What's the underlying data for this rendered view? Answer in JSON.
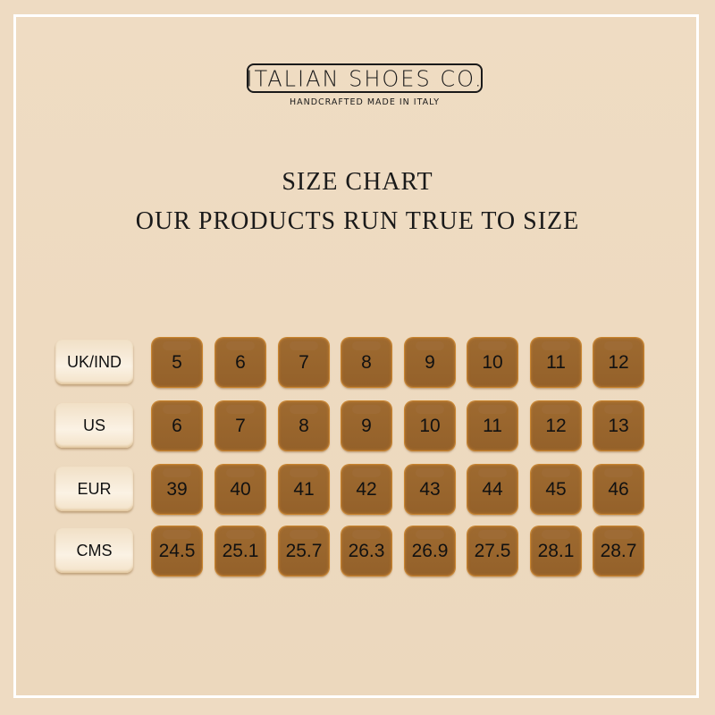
{
  "brand": {
    "name": "ITALIAN SHOES CO.",
    "tagline": "HANDCRAFTED MADE IN ITALY"
  },
  "heading": {
    "title": "SIZE CHART",
    "subtitle": "OUR PRODUCTS RUN TRUE TO SIZE"
  },
  "colors": {
    "background": "#eedbc2",
    "tile": "#9a6530",
    "tile_edge": "#c9852f",
    "label": "#f8ecda",
    "frame": "#ffffff"
  },
  "rows": [
    {
      "label": "UK/IND",
      "values": [
        "5",
        "6",
        "7",
        "8",
        "9",
        "10",
        "11",
        "12"
      ]
    },
    {
      "label": "US",
      "values": [
        "6",
        "7",
        "8",
        "9",
        "10",
        "11",
        "12",
        "13"
      ]
    },
    {
      "label": "EUR",
      "values": [
        "39",
        "40",
        "41",
        "42",
        "43",
        "44",
        "45",
        "46"
      ]
    },
    {
      "label": "CMS",
      "values": [
        "24.5",
        "25.1",
        "25.7",
        "26.3",
        "26.9",
        "27.5",
        "28.1",
        "28.7"
      ]
    }
  ]
}
